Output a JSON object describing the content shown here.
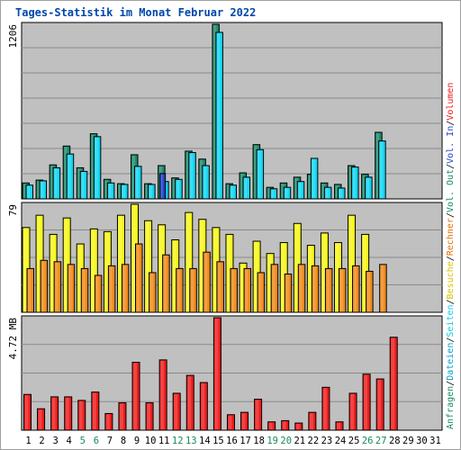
{
  "title": "Tages-Statistik im Monat Februar 2022",
  "colors": {
    "anfragen": "#1b8a6b",
    "dateien": "#12d6f2",
    "seiten": "#2246cc",
    "besuche": "#f7f71a",
    "rechner": "#f08a1a",
    "volumen": "#ee1c1c",
    "panel": "#c0c0c0",
    "title": "#0047ab",
    "weekend": "#1a8a5a"
  },
  "right_legend": {
    "hits": [
      {
        "text": "Anfragen",
        "color": "#1b8a6b"
      },
      {
        "text": "/",
        "color": "#000000"
      },
      {
        "text": "Dateien",
        "color": "#00a0c8"
      },
      {
        "text": "/",
        "color": "#000000"
      },
      {
        "text": "Seiten",
        "color": "#14c8e8"
      },
      {
        "text": "/",
        "color": "#000000"
      },
      {
        "text": "Besuche",
        "color": "#d8c000"
      },
      {
        "text": "/",
        "color": "#000000"
      },
      {
        "text": "Rechner",
        "color": "#e07000"
      },
      {
        "text": "/",
        "color": "#000000"
      },
      {
        "text": "Vol. Out",
        "color": "#1b8a6b"
      },
      {
        "text": "/",
        "color": "#000000"
      },
      {
        "text": "Vol. In",
        "color": "#2246cc"
      },
      {
        "text": "/",
        "color": "#000000"
      },
      {
        "text": "Volumen",
        "color": "#ee1c1c"
      }
    ]
  },
  "chart_data": {
    "type": "bar",
    "title": "Tages-Statistik im Monat Februar 2022",
    "days": [
      "1",
      "2",
      "3",
      "4",
      "5",
      "6",
      "7",
      "8",
      "9",
      "10",
      "11",
      "12",
      "13",
      "14",
      "15",
      "16",
      "17",
      "18",
      "19",
      "20",
      "21",
      "22",
      "23",
      "24",
      "25",
      "26",
      "27",
      "28",
      "29",
      "30",
      "31"
    ],
    "weekend_days": [
      5,
      6,
      12,
      13,
      19,
      20,
      26,
      27
    ],
    "panels": [
      {
        "name": "hits",
        "max_label": "1206",
        "ymax": 1206,
        "series": [
          {
            "name": "Anfragen",
            "values": [
              110,
              130,
              235,
              365,
              215,
              450,
              135,
              105,
              305,
              105,
              230,
              145,
              330,
              275,
              1206,
              105,
              180,
              375,
              80,
              110,
              150,
              170,
              110,
              100,
              230,
              170,
              460,
              0,
              0,
              0,
              0
            ]
          },
          {
            "name": "Dateien",
            "values": [
              95,
              125,
              215,
              310,
              190,
              430,
              110,
              100,
              225,
              100,
              120,
              135,
              320,
              230,
              1150,
              95,
              150,
              340,
              70,
              80,
              120,
              280,
              80,
              75,
              220,
              150,
              400,
              0,
              0,
              0,
              0
            ]
          },
          {
            "name": "Seiten",
            "values": [
              0,
              0,
              0,
              0,
              0,
              0,
              0,
              0,
              0,
              0,
              175,
              0,
              0,
              0,
              0,
              0,
              0,
              0,
              0,
              0,
              0,
              0,
              0,
              0,
              0,
              0,
              0,
              0,
              0,
              0,
              0
            ]
          }
        ]
      },
      {
        "name": "visits",
        "max_label": "79",
        "ymax": 79,
        "series": [
          {
            "name": "Besuche",
            "values": [
              62,
              71,
              57,
              69,
              50,
              61,
              59,
              71,
              79,
              67,
              64,
              53,
              73,
              68,
              62,
              57,
              36,
              52,
              43,
              51,
              65,
              49,
              58,
              51,
              71,
              57,
              0,
              0,
              0,
              0,
              0
            ]
          },
          {
            "name": "Rechner",
            "values": [
              32,
              38,
              37,
              35,
              32,
              27,
              34,
              35,
              50,
              29,
              42,
              32,
              32,
              44,
              37,
              32,
              32,
              29,
              35,
              28,
              35,
              34,
              32,
              32,
              34,
              30,
              35,
              0,
              0,
              0,
              0
            ]
          }
        ]
      },
      {
        "name": "volume",
        "max_label": "4.72 MB",
        "ymax": 4.72,
        "series": [
          {
            "name": "Volumen",
            "values": [
              1.5,
              0.9,
              1.4,
              1.4,
              1.25,
              1.6,
              0.7,
              1.15,
              2.85,
              1.15,
              2.95,
              1.55,
              2.3,
              2.0,
              4.72,
              0.65,
              0.75,
              1.3,
              0.35,
              0.4,
              0.3,
              0.75,
              1.8,
              0.35,
              1.55,
              2.35,
              2.15,
              3.9,
              0,
              0,
              0
            ]
          }
        ]
      }
    ]
  }
}
